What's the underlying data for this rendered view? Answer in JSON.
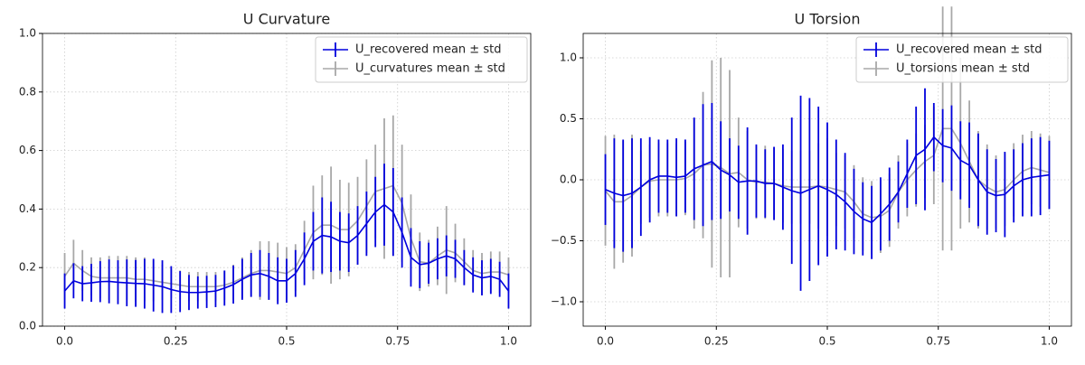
{
  "chart_data": [
    {
      "type": "errorbar",
      "title": "U Curvature",
      "grid": true,
      "legend": "upper right",
      "xlim": [
        -0.05,
        1.05
      ],
      "ylim": [
        0,
        1
      ],
      "xticks": [
        {
          "value": 0,
          "label": "0.0"
        },
        0.25,
        0.5,
        0.75,
        {
          "value": 1,
          "label": "1.0"
        }
      ],
      "yticks": [
        {
          "value": 0,
          "label": "0.0"
        },
        0.2,
        0.4,
        0.6,
        0.8,
        {
          "value": 1,
          "label": "1.0"
        }
      ],
      "x": [
        0,
        0.02,
        0.04,
        0.06,
        0.08,
        0.1,
        0.12,
        0.14,
        0.16,
        0.18,
        0.2,
        0.22,
        0.24,
        0.26,
        0.28,
        0.3,
        0.32,
        0.34,
        0.36,
        0.38,
        0.4,
        0.42,
        0.44,
        0.46,
        0.48,
        0.5,
        0.52,
        0.54,
        0.56,
        0.58,
        0.6,
        0.62,
        0.64,
        0.66,
        0.68,
        0.7,
        0.72,
        0.74,
        0.76,
        0.78,
        0.8,
        0.82,
        0.84,
        0.86,
        0.88,
        0.9,
        0.92,
        0.94,
        0.96,
        0.98,
        1
      ],
      "series": [
        {
          "name": "U_recovered mean ± std",
          "color": "#0000dd",
          "values": [
            0.12,
            0.155,
            0.145,
            0.148,
            0.152,
            0.153,
            0.15,
            0.148,
            0.146,
            0.145,
            0.14,
            0.135,
            0.125,
            0.118,
            0.115,
            0.115,
            0.117,
            0.12,
            0.13,
            0.142,
            0.16,
            0.175,
            0.18,
            0.17,
            0.155,
            0.155,
            0.18,
            0.23,
            0.29,
            0.31,
            0.305,
            0.29,
            0.285,
            0.31,
            0.35,
            0.39,
            0.415,
            0.39,
            0.32,
            0.235,
            0.21,
            0.215,
            0.23,
            0.24,
            0.23,
            0.2,
            0.175,
            0.165,
            0.17,
            0.16,
            0.12
          ],
          "errors": [
            0.06,
            0.06,
            0.06,
            0.065,
            0.07,
            0.075,
            0.075,
            0.08,
            0.08,
            0.085,
            0.09,
            0.09,
            0.08,
            0.07,
            0.06,
            0.055,
            0.055,
            0.055,
            0.06,
            0.065,
            0.07,
            0.075,
            0.08,
            0.08,
            0.08,
            0.075,
            0.08,
            0.09,
            0.1,
            0.13,
            0.12,
            0.1,
            0.1,
            0.1,
            0.11,
            0.12,
            0.14,
            0.15,
            0.12,
            0.1,
            0.08,
            0.07,
            0.07,
            0.07,
            0.065,
            0.06,
            0.06,
            0.06,
            0.06,
            0.06,
            0.06
          ]
        },
        {
          "name": "U_curvatures mean ± std",
          "color": "#a8a8a8",
          "values": [
            0.17,
            0.215,
            0.19,
            0.17,
            0.165,
            0.165,
            0.165,
            0.165,
            0.16,
            0.16,
            0.155,
            0.15,
            0.145,
            0.14,
            0.135,
            0.135,
            0.135,
            0.135,
            0.14,
            0.15,
            0.165,
            0.18,
            0.19,
            0.19,
            0.185,
            0.18,
            0.2,
            0.26,
            0.32,
            0.345,
            0.345,
            0.33,
            0.33,
            0.36,
            0.41,
            0.46,
            0.47,
            0.48,
            0.42,
            0.3,
            0.22,
            0.215,
            0.24,
            0.26,
            0.25,
            0.22,
            0.19,
            0.18,
            0.185,
            0.185,
            0.175
          ],
          "errors": [
            0.08,
            0.08,
            0.07,
            0.065,
            0.07,
            0.075,
            0.075,
            0.075,
            0.075,
            0.075,
            0.07,
            0.06,
            0.05,
            0.05,
            0.05,
            0.05,
            0.05,
            0.05,
            0.05,
            0.06,
            0.07,
            0.08,
            0.1,
            0.1,
            0.1,
            0.09,
            0.08,
            0.1,
            0.16,
            0.17,
            0.2,
            0.17,
            0.16,
            0.15,
            0.16,
            0.16,
            0.24,
            0.24,
            0.2,
            0.15,
            0.1,
            0.08,
            0.1,
            0.15,
            0.1,
            0.08,
            0.07,
            0.07,
            0.07,
            0.07,
            0.06
          ]
        }
      ]
    },
    {
      "type": "errorbar",
      "title": "U Torsion",
      "grid": true,
      "legend": "upper right",
      "xlim": [
        -0.05,
        1.05
      ],
      "ylim": [
        -1.2,
        1.2
      ],
      "xticks": [
        {
          "value": 0,
          "label": "0.0"
        },
        0.25,
        0.5,
        0.75,
        {
          "value": 1,
          "label": "1.0"
        }
      ],
      "yticks": [
        {
          "value": -1,
          "label": "−1.0"
        },
        {
          "value": -0.5,
          "label": "−0.5"
        },
        {
          "value": 0,
          "label": "0.0"
        },
        0.5,
        {
          "value": 1,
          "label": "1.0"
        }
      ],
      "x": [
        0,
        0.02,
        0.04,
        0.06,
        0.08,
        0.1,
        0.12,
        0.14,
        0.16,
        0.18,
        0.2,
        0.22,
        0.24,
        0.26,
        0.28,
        0.3,
        0.32,
        0.34,
        0.36,
        0.38,
        0.4,
        0.42,
        0.44,
        0.46,
        0.48,
        0.5,
        0.52,
        0.54,
        0.56,
        0.58,
        0.6,
        0.62,
        0.64,
        0.66,
        0.68,
        0.7,
        0.72,
        0.74,
        0.76,
        0.78,
        0.8,
        0.82,
        0.84,
        0.86,
        0.88,
        0.9,
        0.92,
        0.94,
        0.96,
        0.98,
        1
      ],
      "series": [
        {
          "name": "U_recovered mean ± std",
          "color": "#0000dd",
          "values": [
            -0.08,
            -0.11,
            -0.13,
            -0.11,
            -0.06,
            0.0,
            0.03,
            0.03,
            0.02,
            0.03,
            0.09,
            0.12,
            0.15,
            0.08,
            0.04,
            -0.02,
            -0.01,
            -0.01,
            -0.03,
            -0.03,
            -0.06,
            -0.09,
            -0.11,
            -0.08,
            -0.05,
            -0.08,
            -0.12,
            -0.18,
            -0.26,
            -0.32,
            -0.35,
            -0.28,
            -0.2,
            -0.1,
            0.05,
            0.2,
            0.25,
            0.35,
            0.28,
            0.26,
            0.16,
            0.12,
            0.0,
            -0.1,
            -0.13,
            -0.12,
            -0.05,
            0.0,
            0.02,
            0.03,
            0.04
          ],
          "errors": [
            0.29,
            0.45,
            0.46,
            0.45,
            0.4,
            0.35,
            0.3,
            0.3,
            0.32,
            0.3,
            0.42,
            0.5,
            0.48,
            0.4,
            0.3,
            0.3,
            0.44,
            0.3,
            0.28,
            0.3,
            0.35,
            0.6,
            0.8,
            0.75,
            0.65,
            0.55,
            0.45,
            0.4,
            0.35,
            0.3,
            0.3,
            0.3,
            0.3,
            0.25,
            0.28,
            0.4,
            0.5,
            0.28,
            0.3,
            0.35,
            0.32,
            0.35,
            0.38,
            0.35,
            0.3,
            0.35,
            0.3,
            0.3,
            0.32,
            0.32,
            0.28
          ]
        },
        {
          "name": "U_torsions mean ± std",
          "color": "#a8a8a8",
          "values": [
            -0.09,
            -0.18,
            -0.18,
            -0.13,
            -0.06,
            -0.01,
            0.0,
            0.0,
            0.0,
            0.01,
            0.05,
            0.12,
            0.13,
            0.1,
            0.05,
            0.06,
            0.0,
            -0.02,
            -0.02,
            -0.03,
            -0.05,
            -0.06,
            -0.06,
            -0.06,
            -0.05,
            -0.06,
            -0.08,
            -0.1,
            -0.18,
            -0.28,
            -0.31,
            -0.3,
            -0.25,
            -0.1,
            0.0,
            0.08,
            0.15,
            0.2,
            0.42,
            0.42,
            0.3,
            0.15,
            0.0,
            -0.06,
            -0.1,
            -0.08,
            0.0,
            0.07,
            0.1,
            0.08,
            0.06
          ],
          "errors": [
            0.45,
            0.55,
            0.5,
            0.5,
            0.3,
            0.3,
            0.3,
            0.3,
            0.3,
            0.3,
            0.45,
            0.6,
            0.85,
            0.9,
            0.85,
            0.45,
            0.4,
            0.3,
            0.3,
            0.3,
            0.3,
            0.3,
            0.3,
            0.3,
            0.35,
            0.4,
            0.3,
            0.3,
            0.3,
            0.3,
            0.3,
            0.3,
            0.3,
            0.3,
            0.3,
            0.3,
            0.3,
            0.4,
            1.0,
            1.0,
            0.7,
            0.5,
            0.4,
            0.35,
            0.3,
            0.3,
            0.3,
            0.3,
            0.3,
            0.3,
            0.3
          ]
        }
      ]
    }
  ]
}
